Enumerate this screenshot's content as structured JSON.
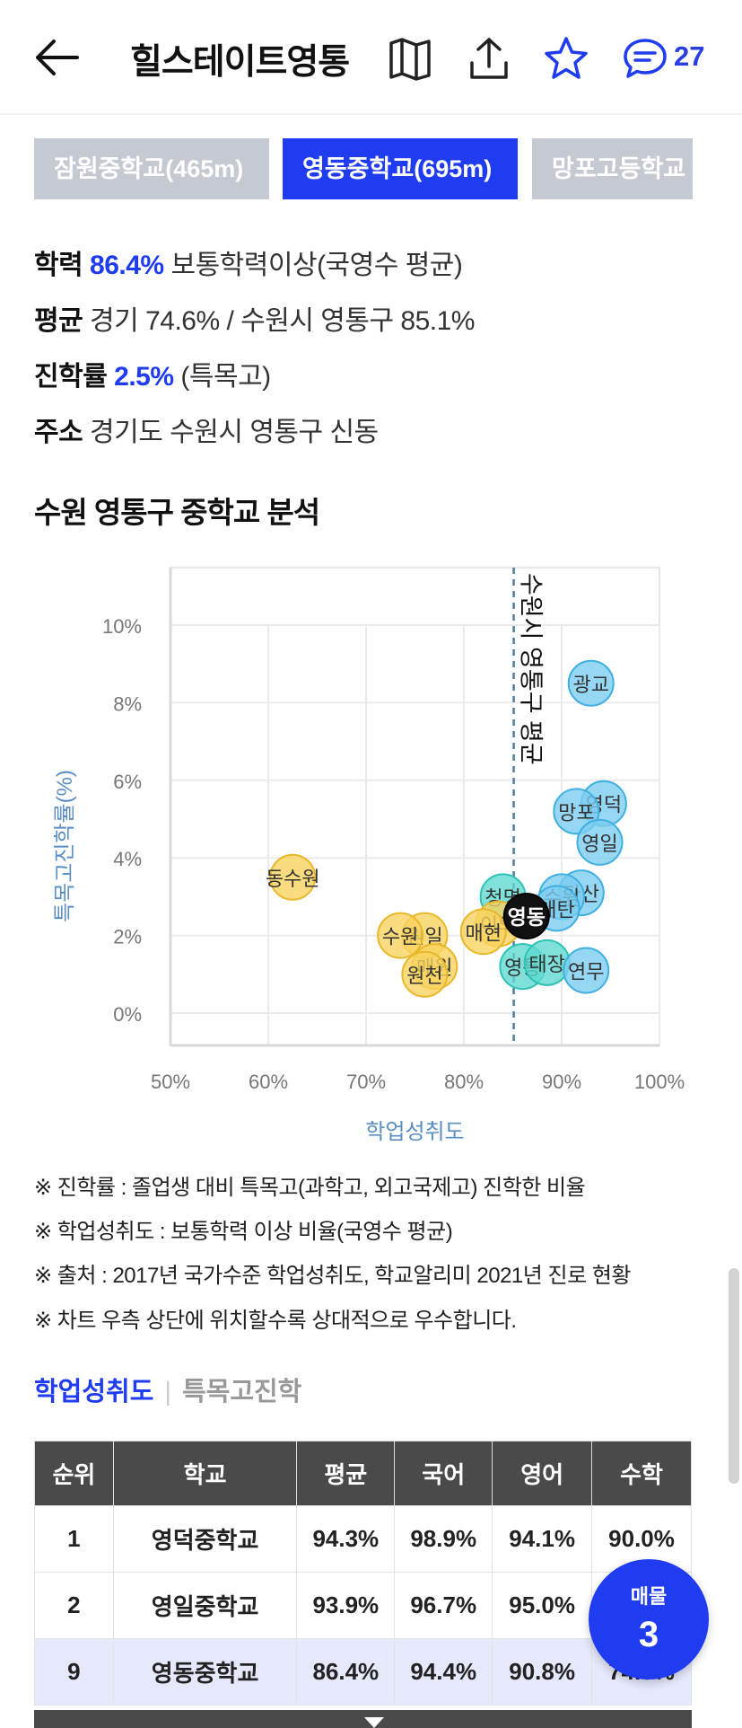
{
  "header": {
    "title": "힐스테이트영통",
    "comment_count": "27",
    "icons": [
      "back-arrow-icon",
      "map-icon",
      "share-icon",
      "star-icon",
      "comment-icon"
    ],
    "accent_color": "#1f3cf0"
  },
  "school_tabs": [
    {
      "label": "잠원중학교(465m)",
      "active": false
    },
    {
      "label": "영동중학교(695m)",
      "active": true
    },
    {
      "label": "망포고등학교",
      "active": false
    }
  ],
  "info": {
    "achievement_label": "학력",
    "achievement_value": "86.4%",
    "achievement_desc": "보통학력이상(국영수 평균)",
    "average_label": "평균",
    "average_text": "경기 74.6% / 수원시 영통구 85.1%",
    "advance_label": "진학률",
    "advance_value": "2.5%",
    "advance_desc": "(특목고)",
    "address_label": "주소",
    "address_text": "경기도 수원시 영통구 신동"
  },
  "section_title": "수원 영통구 중학교 분석",
  "chart_data": {
    "type": "scatter",
    "title": "",
    "xlabel": "학업성취도",
    "ylabel": "특목고진학률(%)",
    "xlim": [
      50,
      100
    ],
    "ylim": [
      0,
      10
    ],
    "x_ticks": [
      "50%",
      "60%",
      "70%",
      "80%",
      "90%",
      "100%"
    ],
    "y_ticks": [
      "0%",
      "2%",
      "4%",
      "6%",
      "8%",
      "10%"
    ],
    "reference_line": {
      "x": 85.1,
      "label": "수원시 영통구 평균"
    },
    "grid": true,
    "colors": {
      "below_avg": "#f7d35f",
      "above_avg": "#7ccdf0",
      "teal": "#5fd9cf",
      "selected": "#111111",
      "axis_label": "#5b8fc4"
    },
    "points": [
      {
        "name": "광교",
        "x": 93.0,
        "y": 8.5,
        "group": "above_avg"
      },
      {
        "name": "영덕",
        "x": 94.3,
        "y": 5.4,
        "group": "above_avg"
      },
      {
        "name": "망포",
        "x": 91.5,
        "y": 5.2,
        "group": "above_avg"
      },
      {
        "name": "영일",
        "x": 93.9,
        "y": 4.4,
        "group": "above_avg"
      },
      {
        "name": "동수원",
        "x": 62.5,
        "y": 3.5,
        "group": "below_avg"
      },
      {
        "name": "다산",
        "x": 92.0,
        "y": 3.1,
        "group": "above_avg"
      },
      {
        "name": "수원",
        "x": 90.0,
        "y": 3.0,
        "group": "above_avg"
      },
      {
        "name": "청명",
        "x": 84.0,
        "y": 3.0,
        "group": "teal"
      },
      {
        "name": "매탄",
        "x": 89.5,
        "y": 2.7,
        "group": "above_avg"
      },
      {
        "name": "이의",
        "x": 83.5,
        "y": 2.3,
        "group": "below_avg"
      },
      {
        "name": "매현",
        "x": 82.0,
        "y": 2.1,
        "group": "below_avg"
      },
      {
        "name": "원일",
        "x": 76.0,
        "y": 2.0,
        "group": "below_avg"
      },
      {
        "name": "수원",
        "x": 73.5,
        "y": 2.0,
        "group": "below_avg"
      },
      {
        "name": "영동",
        "x": 86.4,
        "y": 2.5,
        "group": "selected"
      },
      {
        "name": "매원",
        "x": 77.0,
        "y": 1.2,
        "group": "below_avg"
      },
      {
        "name": "원천",
        "x": 76.0,
        "y": 1.0,
        "group": "below_avg"
      },
      {
        "name": "영통",
        "x": 86.0,
        "y": 1.2,
        "group": "teal"
      },
      {
        "name": "태장",
        "x": 88.5,
        "y": 1.3,
        "group": "teal"
      },
      {
        "name": "연무",
        "x": 92.5,
        "y": 1.1,
        "group": "above_avg"
      }
    ]
  },
  "notes": [
    "※ 진학률 : 졸업생 대비 특목고(과학고, 외고국제고) 진학한 비율",
    "※ 학업성취도 : 보통학력 이상 비율(국영수 평균)",
    "※ 출처 : 2017년 국가수준 학업성취도, 학교알리미 2021년 진로 현황",
    "※ 차트 우측 상단에 위치할수록 상대적으로 우수합니다."
  ],
  "subtabs": {
    "active": "학업성취도",
    "inactive": "특목고진학"
  },
  "table": {
    "headers": [
      "순위",
      "학교",
      "평균",
      "국어",
      "영어",
      "수학"
    ],
    "rows": [
      [
        "1",
        "영덕중학교",
        "94.3%",
        "98.9%",
        "94.1%",
        "90.0%"
      ],
      [
        "2",
        "영일중학교",
        "93.9%",
        "96.7%",
        "95.0%",
        ""
      ],
      [
        "9",
        "영동중학교",
        "86.4%",
        "94.4%",
        "90.8%",
        "74.0%"
      ]
    ]
  },
  "fab": {
    "label": "매물",
    "count": "3"
  }
}
